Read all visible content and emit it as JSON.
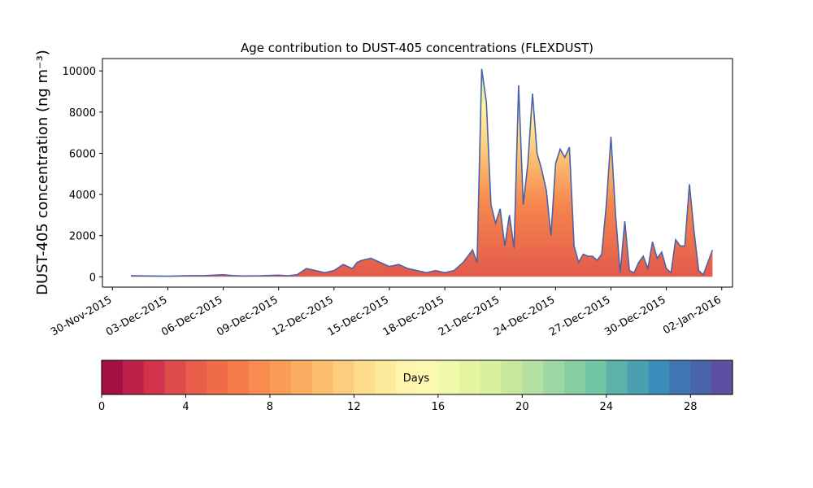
{
  "chart_data": {
    "type": "area",
    "title": "Age contribution to DUST-405 concentrations (FLEXDUST)",
    "ylabel": "DUST-405 concentration (ng m⁻³)",
    "xlabel": "",
    "ylim": [
      -500,
      10600
    ],
    "yticks": [
      0,
      2000,
      4000,
      6000,
      8000,
      10000
    ],
    "xlim": [
      "2015-11-29T11:00",
      "2016-01-02T14:00"
    ],
    "xticks": [
      "30-Nov-2015",
      "03-Dec-2015",
      "06-Dec-2015",
      "09-Dec-2015",
      "12-Dec-2015",
      "15-Dec-2015",
      "18-Dec-2015",
      "21-Dec-2015",
      "24-Dec-2015",
      "27-Dec-2015",
      "30-Dec-2015",
      "02-Jan-2016"
    ],
    "grid": false,
    "total_line_color": "#4a62a8",
    "total": {
      "x": [
        "2015-12-01T00:00",
        "2015-12-02T00:00",
        "2015-12-03T00:00",
        "2015-12-04T00:00",
        "2015-12-05T00:00",
        "2015-12-05T12:00",
        "2015-12-06T00:00",
        "2015-12-06T12:00",
        "2015-12-07T00:00",
        "2015-12-08T00:00",
        "2015-12-09T00:00",
        "2015-12-09T12:00",
        "2015-12-10T00:00",
        "2015-12-10T12:00",
        "2015-12-11T00:00",
        "2015-12-11T12:00",
        "2015-12-12T00:00",
        "2015-12-12T12:00",
        "2015-12-13T00:00",
        "2015-12-13T06:00",
        "2015-12-13T12:00",
        "2015-12-14T00:00",
        "2015-12-14T12:00",
        "2015-12-15T00:00",
        "2015-12-15T12:00",
        "2015-12-16T00:00",
        "2015-12-16T12:00",
        "2015-12-17T00:00",
        "2015-12-17T12:00",
        "2015-12-18T00:00",
        "2015-12-18T12:00",
        "2015-12-19T00:00",
        "2015-12-19T06:00",
        "2015-12-19T12:00",
        "2015-12-19T18:00",
        "2015-12-20T00:00",
        "2015-12-20T06:00",
        "2015-12-20T12:00",
        "2015-12-20T18:00",
        "2015-12-21T00:00",
        "2015-12-21T06:00",
        "2015-12-21T12:00",
        "2015-12-21T18:00",
        "2015-12-22T00:00",
        "2015-12-22T06:00",
        "2015-12-22T12:00",
        "2015-12-22T18:00",
        "2015-12-23T00:00",
        "2015-12-23T06:00",
        "2015-12-23T12:00",
        "2015-12-23T18:00",
        "2015-12-24T00:00",
        "2015-12-24T06:00",
        "2015-12-24T12:00",
        "2015-12-24T18:00",
        "2015-12-25T00:00",
        "2015-12-25T06:00",
        "2015-12-25T12:00",
        "2015-12-25T18:00",
        "2015-12-26T00:00",
        "2015-12-26T06:00",
        "2015-12-26T12:00",
        "2015-12-26T18:00",
        "2015-12-27T00:00",
        "2015-12-27T06:00",
        "2015-12-27T12:00",
        "2015-12-27T18:00",
        "2015-12-28T00:00",
        "2015-12-28T06:00",
        "2015-12-28T12:00",
        "2015-12-28T18:00",
        "2015-12-29T00:00",
        "2015-12-29T06:00",
        "2015-12-29T12:00",
        "2015-12-29T18:00",
        "2015-12-30T00:00",
        "2015-12-30T06:00",
        "2015-12-30T12:00",
        "2015-12-30T18:00",
        "2015-12-31T00:00",
        "2015-12-31T06:00",
        "2015-12-31T12:00",
        "2015-12-31T18:00",
        "2016-01-01T00:00",
        "2016-01-01T06:00",
        "2016-01-01T12:00"
      ],
      "y": [
        50,
        40,
        30,
        50,
        60,
        80,
        100,
        60,
        40,
        50,
        80,
        50,
        100,
        400,
        300,
        200,
        300,
        600,
        400,
        700,
        800,
        900,
        700,
        500,
        600,
        400,
        300,
        200,
        300,
        200,
        300,
        700,
        1000,
        1300,
        700,
        10100,
        8500,
        3500,
        2600,
        3300,
        1500,
        3000,
        1400,
        9300,
        3500,
        5500,
        8900,
        6000,
        5200,
        4200,
        2000,
        5500,
        6200,
        5800,
        6300,
        1500,
        700,
        1100,
        1000,
        1000,
        800,
        1100,
        3500,
        6800,
        3000,
        200,
        2700,
        300,
        200,
        700,
        1000,
        400,
        1700,
        900,
        1200,
        400,
        200,
        1800,
        1500,
        1500,
        4500,
        2200,
        300,
        100,
        700,
        1300
      ]
    },
    "colorbar": {
      "label": "Days",
      "ticks": [
        0,
        4,
        8,
        12,
        16,
        20,
        24,
        28
      ],
      "range": [
        0,
        30
      ],
      "colors": [
        "#a50f43",
        "#bd2148",
        "#d2334c",
        "#de4b4b",
        "#e85e4a",
        "#ee6c48",
        "#f67c4a",
        "#f88c4f",
        "#fa9c58",
        "#fcad62",
        "#fdbe70",
        "#fdcd7d",
        "#fddc8b",
        "#feea9b",
        "#fef5ac",
        "#fbf9b0",
        "#f1f9aa",
        "#e5f49e",
        "#d8ef9b",
        "#c7e89d",
        "#b4e0a2",
        "#9dd7a4",
        "#86cea4",
        "#70c5a4",
        "#5cb1a9",
        "#4a9fb1",
        "#3b8dbb",
        "#3f76b4",
        "#4b63ab",
        "#5e4fa2"
      ]
    }
  }
}
